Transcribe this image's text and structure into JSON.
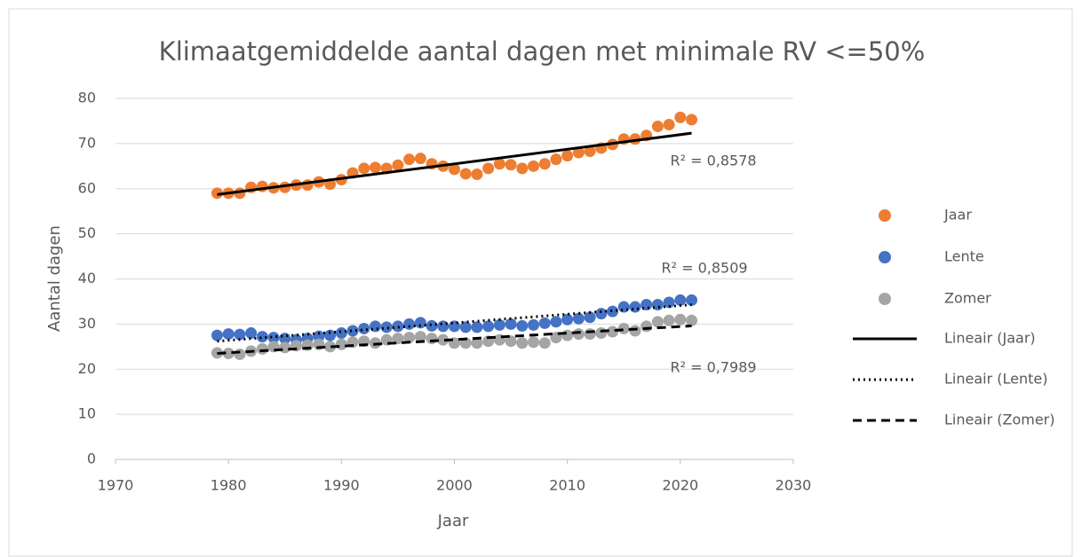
{
  "chart_data": {
    "type": "scatter",
    "title": "Klimaatgemiddelde aantal dagen met minimale RV <=50%",
    "x_label": "Jaar",
    "y_label": "Aantal dagen",
    "xlim": [
      1970,
      2030
    ],
    "xticks": [
      1970,
      1980,
      1990,
      2000,
      2010,
      2020,
      2030
    ],
    "ylim": [
      0,
      80
    ],
    "yticks": [
      0,
      10,
      20,
      30,
      40,
      50,
      60,
      70,
      80
    ],
    "grid": true,
    "legend": "right",
    "x": [
      1979,
      1980,
      1981,
      1982,
      1983,
      1984,
      1985,
      1986,
      1987,
      1988,
      1989,
      1990,
      1991,
      1992,
      1993,
      1994,
      1995,
      1996,
      1997,
      1998,
      1999,
      2000,
      2001,
      2002,
      2003,
      2004,
      2005,
      2006,
      2007,
      2008,
      2009,
      2010,
      2011,
      2012,
      2013,
      2014,
      2015,
      2016,
      2017,
      2018,
      2019,
      2020,
      2021
    ],
    "series": [
      {
        "name": "Jaar",
        "color": "#ed7d31",
        "values": [
          59,
          59,
          59,
          60.3,
          60.5,
          60.2,
          60.3,
          60.8,
          60.8,
          61.5,
          61,
          62,
          63.5,
          64.5,
          64.7,
          64.5,
          65.2,
          66.5,
          66.7,
          65.5,
          65,
          64.3,
          63.3,
          63.2,
          64.5,
          65.5,
          65.3,
          64.5,
          65,
          65.5,
          66.5,
          67.3,
          68,
          68.3,
          69,
          69.8,
          71,
          71,
          71.8,
          73.8,
          74.2,
          75.8,
          75.3
        ]
      },
      {
        "name": "Lente",
        "color": "#4472c4",
        "values": [
          27.5,
          27.8,
          27.7,
          28,
          27.2,
          27,
          26.8,
          26.5,
          26.8,
          27.3,
          27.5,
          28,
          28.5,
          29,
          29.5,
          29.3,
          29.5,
          30,
          30.3,
          29.6,
          29.5,
          29.5,
          29.3,
          29.3,
          29.5,
          29.8,
          30,
          29.6,
          29.8,
          30.2,
          30.5,
          31,
          31.2,
          31.5,
          32.3,
          32.8,
          33.8,
          33.8,
          34.3,
          34.3,
          34.8,
          35.3,
          35.3
        ]
      },
      {
        "name": "Zomer",
        "color": "#a5a5a5",
        "values": [
          23.6,
          23.5,
          23.3,
          24,
          24.5,
          25,
          24.8,
          25.2,
          25.3,
          25.5,
          25,
          25.5,
          26,
          26.2,
          25.8,
          26.5,
          26.8,
          27,
          27.2,
          26.8,
          26.5,
          25.8,
          25.8,
          25.8,
          26.2,
          26.5,
          26.2,
          25.8,
          26,
          25.8,
          27,
          27.5,
          27.8,
          27.8,
          28,
          28.3,
          29,
          28.5,
          29.5,
          30.5,
          30.8,
          31,
          30.8
        ]
      },
      {
        "name": "Lineair (Jaar)",
        "color": "#000000",
        "dash": "solid",
        "x": [
          1979,
          2021
        ],
        "values": [
          58.7,
          72.3
        ]
      },
      {
        "name": "Lineair (Lente)",
        "color": "#000000",
        "dash": "dotted",
        "x": [
          1979,
          2021
        ],
        "values": [
          26.2,
          34.3
        ]
      },
      {
        "name": "Lineair (Zomer)",
        "color": "#000000",
        "dash": "dashed",
        "x": [
          1979,
          2021
        ],
        "values": [
          23.5,
          29.6
        ]
      }
    ],
    "annotations": [
      "R² = 0,8578",
      "R² = 0,8509",
      "R² = 0,7989"
    ]
  }
}
